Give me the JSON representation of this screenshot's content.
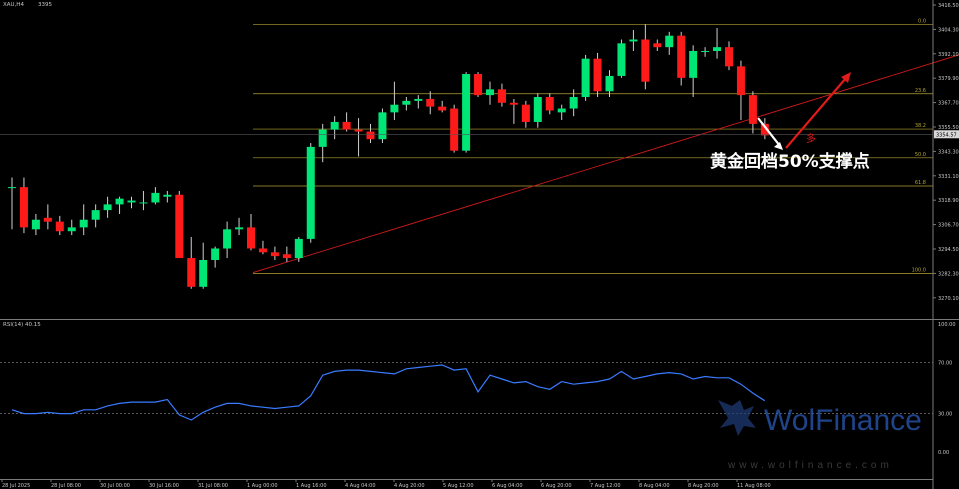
{
  "header": {
    "symbol": "XAU,H4",
    "ohlc": "3395"
  },
  "price_axis": {
    "ticks": [
      "3416.50",
      "3404.30",
      "3392.10",
      "3379.90",
      "3367.70",
      "3355.50",
      "3343.30",
      "3331.10",
      "3318.90",
      "3306.70",
      "3294.50",
      "3282.30",
      "3270.10"
    ],
    "current_price": "3354.57"
  },
  "fib_levels": [
    {
      "label": "0.0",
      "price": 3411.8
    },
    {
      "label": "23.6",
      "price": 3375.7
    },
    {
      "label": "38.2",
      "price": 3357.3
    },
    {
      "label": "50.0",
      "price": 3342.3
    },
    {
      "label": "61.8",
      "price": 3327.6
    },
    {
      "label": "100.0",
      "price": 3281.9
    }
  ],
  "annotation": {
    "text": "黄金回档50%支撑点",
    "tag": "多"
  },
  "rsi": {
    "label": "RSI(14) 40.15",
    "ticks": [
      "100.00",
      "70.00",
      "30.00",
      "0.00"
    ]
  },
  "time_axis": {
    "labels": [
      "28 Jul 2025",
      "28 Jul 08:00",
      "30 Jul 00:00",
      "30 Jul 16:00",
      "31 Jul 08:00",
      "1 Aug 00:00",
      "1 Aug 16:00",
      "4 Aug 04:00",
      "4 Aug 20:00",
      "5 Aug 12:00",
      "6 Aug 04:00",
      "6 Aug 20:00",
      "7 Aug 12:00",
      "8 Aug 04:00",
      "8 Aug 20:00",
      "11 Aug 08:00"
    ]
  },
  "watermark": {
    "brand": "WolFinance",
    "url": "www.wolfinance.com"
  },
  "colors": {
    "bull": "#00e676",
    "bear": "#ff1a1a",
    "rsi_line": "#3a7bff",
    "fib": "#b5a232",
    "trend": "#cc1a1a"
  },
  "chart_data": {
    "type": "candlestick",
    "title": "XAU,H4",
    "ylim": [
      3262,
      3422
    ],
    "candles": [
      {
        "o": 3327,
        "h": 3332,
        "l": 3305,
        "c": 3327
      },
      {
        "o": 3327,
        "h": 3332,
        "l": 3303,
        "c": 3306
      },
      {
        "o": 3305,
        "h": 3313,
        "l": 3302,
        "c": 3310
      },
      {
        "o": 3311,
        "h": 3318,
        "l": 3305,
        "c": 3309
      },
      {
        "o": 3309,
        "h": 3312,
        "l": 3302,
        "c": 3304
      },
      {
        "o": 3304,
        "h": 3310,
        "l": 3302,
        "c": 3306
      },
      {
        "o": 3306,
        "h": 3318,
        "l": 3302,
        "c": 3310
      },
      {
        "o": 3310,
        "h": 3318,
        "l": 3306,
        "c": 3315
      },
      {
        "o": 3315,
        "h": 3322,
        "l": 3311,
        "c": 3318
      },
      {
        "o": 3318,
        "h": 3322,
        "l": 3313,
        "c": 3321
      },
      {
        "o": 3319,
        "h": 3322,
        "l": 3316,
        "c": 3320
      },
      {
        "o": 3319,
        "h": 3325,
        "l": 3315,
        "c": 3319
      },
      {
        "o": 3319,
        "h": 3327,
        "l": 3318,
        "c": 3324
      },
      {
        "o": 3322,
        "h": 3325,
        "l": 3319,
        "c": 3323
      },
      {
        "o": 3323,
        "h": 3325,
        "l": 3290,
        "c": 3290
      },
      {
        "o": 3290,
        "h": 3301,
        "l": 3274,
        "c": 3275
      },
      {
        "o": 3275,
        "h": 3298,
        "l": 3274,
        "c": 3289
      },
      {
        "o": 3289,
        "h": 3296,
        "l": 3285,
        "c": 3295
      },
      {
        "o": 3295,
        "h": 3309,
        "l": 3290,
        "c": 3305
      },
      {
        "o": 3305,
        "h": 3311,
        "l": 3302,
        "c": 3306
      },
      {
        "o": 3306,
        "h": 3313,
        "l": 3294,
        "c": 3295
      },
      {
        "o": 3295,
        "h": 3299,
        "l": 3292,
        "c": 3293
      },
      {
        "o": 3293,
        "h": 3296,
        "l": 3289,
        "c": 3291
      },
      {
        "o": 3292,
        "h": 3296,
        "l": 3288,
        "c": 3290
      },
      {
        "o": 3290,
        "h": 3301,
        "l": 3288,
        "c": 3300
      },
      {
        "o": 3300,
        "h": 3350,
        "l": 3298,
        "c": 3348
      },
      {
        "o": 3348,
        "h": 3360,
        "l": 3340,
        "c": 3357
      },
      {
        "o": 3357,
        "h": 3364,
        "l": 3352,
        "c": 3361
      },
      {
        "o": 3361,
        "h": 3366,
        "l": 3356,
        "c": 3357
      },
      {
        "o": 3357,
        "h": 3363,
        "l": 3343,
        "c": 3356
      },
      {
        "o": 3356,
        "h": 3360,
        "l": 3350,
        "c": 3352
      },
      {
        "o": 3352,
        "h": 3368,
        "l": 3350,
        "c": 3366
      },
      {
        "o": 3366,
        "h": 3382,
        "l": 3362,
        "c": 3370
      },
      {
        "o": 3370,
        "h": 3374,
        "l": 3367,
        "c": 3372
      },
      {
        "o": 3372,
        "h": 3375,
        "l": 3368,
        "c": 3373
      },
      {
        "o": 3373,
        "h": 3377,
        "l": 3365,
        "c": 3369
      },
      {
        "o": 3369,
        "h": 3372,
        "l": 3366,
        "c": 3367
      },
      {
        "o": 3368,
        "h": 3370,
        "l": 3345,
        "c": 3346
      },
      {
        "o": 3346,
        "h": 3387,
        "l": 3345,
        "c": 3386
      },
      {
        "o": 3386,
        "h": 3387,
        "l": 3374,
        "c": 3375
      },
      {
        "o": 3375,
        "h": 3382,
        "l": 3370,
        "c": 3378
      },
      {
        "o": 3378,
        "h": 3381,
        "l": 3369,
        "c": 3371
      },
      {
        "o": 3371,
        "h": 3373,
        "l": 3360,
        "c": 3370
      },
      {
        "o": 3370,
        "h": 3372,
        "l": 3358,
        "c": 3361
      },
      {
        "o": 3361,
        "h": 3376,
        "l": 3358,
        "c": 3374
      },
      {
        "o": 3374,
        "h": 3376,
        "l": 3365,
        "c": 3367
      },
      {
        "o": 3366,
        "h": 3370,
        "l": 3362,
        "c": 3368
      },
      {
        "o": 3368,
        "h": 3378,
        "l": 3364,
        "c": 3374
      },
      {
        "o": 3374,
        "h": 3396,
        "l": 3372,
        "c": 3394
      },
      {
        "o": 3394,
        "h": 3397,
        "l": 3374,
        "c": 3377
      },
      {
        "o": 3377,
        "h": 3388,
        "l": 3374,
        "c": 3385
      },
      {
        "o": 3385,
        "h": 3404,
        "l": 3384,
        "c": 3402
      },
      {
        "o": 3403,
        "h": 3409,
        "l": 3398,
        "c": 3404
      },
      {
        "o": 3404,
        "h": 3412,
        "l": 3378,
        "c": 3382
      },
      {
        "o": 3402,
        "h": 3404,
        "l": 3398,
        "c": 3400
      },
      {
        "o": 3400,
        "h": 3408,
        "l": 3396,
        "c": 3406
      },
      {
        "o": 3406,
        "h": 3408,
        "l": 3380,
        "c": 3384
      },
      {
        "o": 3384,
        "h": 3401,
        "l": 3374,
        "c": 3398
      },
      {
        "o": 3398,
        "h": 3400,
        "l": 3395,
        "c": 3398
      },
      {
        "o": 3398,
        "h": 3410,
        "l": 3394,
        "c": 3400
      },
      {
        "o": 3400,
        "h": 3403,
        "l": 3388,
        "c": 3390
      },
      {
        "o": 3390,
        "h": 3393,
        "l": 3362,
        "c": 3375
      },
      {
        "o": 3375,
        "h": 3377,
        "l": 3355,
        "c": 3360
      },
      {
        "o": 3360,
        "h": 3363,
        "l": 3352,
        "c": 3354
      }
    ],
    "rsi_values": [
      33,
      30,
      30,
      31,
      30,
      30,
      33,
      33,
      36,
      38,
      39,
      39,
      39,
      41,
      29,
      25,
      31,
      35,
      38,
      38,
      36,
      35,
      34,
      35,
      36,
      44,
      60,
      63,
      64,
      64,
      63,
      62,
      61,
      65,
      66,
      67,
      68,
      64,
      65,
      47,
      60,
      57,
      54,
      55,
      51,
      49,
      55,
      53,
      54,
      55,
      57,
      63,
      57,
      59,
      61,
      62,
      61,
      57,
      59,
      58,
      58,
      53,
      46,
      40
    ],
    "rsi_ylim": [
      0,
      100
    ]
  }
}
